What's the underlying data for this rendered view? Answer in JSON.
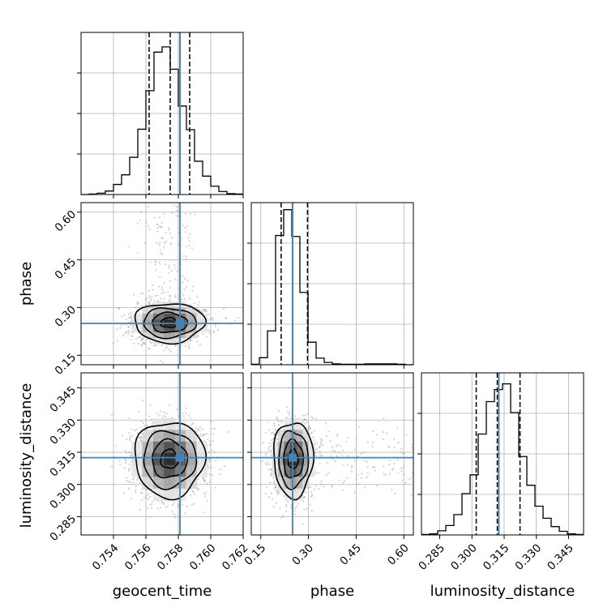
{
  "chart_data": {
    "type": "corner",
    "parameters": [
      "geocent_time",
      "phase",
      "luminosity_distance"
    ],
    "truth": {
      "geocent_time": 0.7581,
      "phase": 0.25,
      "luminosity_distance": 0.3125
    },
    "quantiles": {
      "geocent_time": [
        0.7562,
        0.7575,
        0.7587
      ],
      "phase": [
        0.214,
        0.25,
        0.297
      ],
      "luminosity_distance": [
        0.302,
        0.3118,
        0.3224
      ]
    },
    "colors": {
      "truth": "#4682b4",
      "hist": "#000000",
      "grid": "#b0b0b0",
      "points": "#9a9a9a"
    },
    "axes": {
      "geocent_time": {
        "range": [
          0.752,
          0.762
        ],
        "ticks": [
          0.754,
          0.756,
          0.758,
          0.76,
          0.762
        ],
        "tick_labels": [
          "0.754",
          "0.756",
          "0.758",
          "0.760",
          "0.762"
        ]
      },
      "phase": {
        "range": [
          0.12,
          0.63
        ],
        "ticks": [
          0.15,
          0.3,
          0.45,
          0.6
        ],
        "tick_labels": [
          "0.15",
          "0.30",
          "0.45",
          "0.60"
        ]
      },
      "luminosity_distance": {
        "range": [
          0.2765,
          0.352
        ],
        "ticks": [
          0.285,
          0.3,
          0.315,
          0.33,
          0.345
        ],
        "tick_labels": [
          "0.285",
          "0.300",
          "0.315",
          "0.330",
          "0.345"
        ]
      }
    },
    "histograms": {
      "geocent_time": {
        "bin_edges": [
          0.752,
          0.7525,
          0.753,
          0.7535,
          0.754,
          0.7545,
          0.755,
          0.7555,
          0.756,
          0.7565,
          0.757,
          0.7575,
          0.758,
          0.7585,
          0.759,
          0.7595,
          0.76,
          0.7605,
          0.761,
          0.7615,
          0.762
        ],
        "counts": [
          0,
          1,
          3,
          8,
          23,
          45,
          85,
          149,
          237,
          325,
          337,
          286,
          202,
          148,
          76,
          42,
          19,
          7,
          2,
          1
        ],
        "ymax": 370
      },
      "phase": {
        "bin_edges": [
          0.12,
          0.1455,
          0.171,
          0.1965,
          0.222,
          0.2475,
          0.273,
          0.2985,
          0.324,
          0.3495,
          0.375,
          0.4005,
          0.426,
          0.4515,
          0.477,
          0.5025,
          0.528,
          0.5535,
          0.579,
          0.6045,
          0.63
        ],
        "counts": [
          1,
          15,
          72,
          275,
          330,
          273,
          154,
          48,
          14,
          5,
          2,
          1,
          1,
          1,
          2,
          2,
          2,
          2,
          1,
          0
        ],
        "ymax": 345
      },
      "luminosity_distance": {
        "bin_edges": [
          0.2765,
          0.28028,
          0.28405,
          0.28783,
          0.2916,
          0.29538,
          0.29915,
          0.30293,
          0.3067,
          0.31048,
          0.31425,
          0.31803,
          0.3218,
          0.32558,
          0.32935,
          0.33313,
          0.3369,
          0.34068,
          0.34445,
          0.34823,
          0.352
        ],
        "counts": [
          1,
          2,
          8,
          18,
          39,
          79,
          115,
          193,
          255,
          278,
          289,
          234,
          150,
          95,
          55,
          32,
          16,
          7,
          2,
          1
        ],
        "ymax": 310
      }
    },
    "panels": [
      {
        "x": "geocent_time",
        "y": "phase"
      },
      {
        "x": "geocent_time",
        "y": "luminosity_distance"
      },
      {
        "x": "phase",
        "y": "luminosity_distance"
      }
    ],
    "grid": true
  }
}
